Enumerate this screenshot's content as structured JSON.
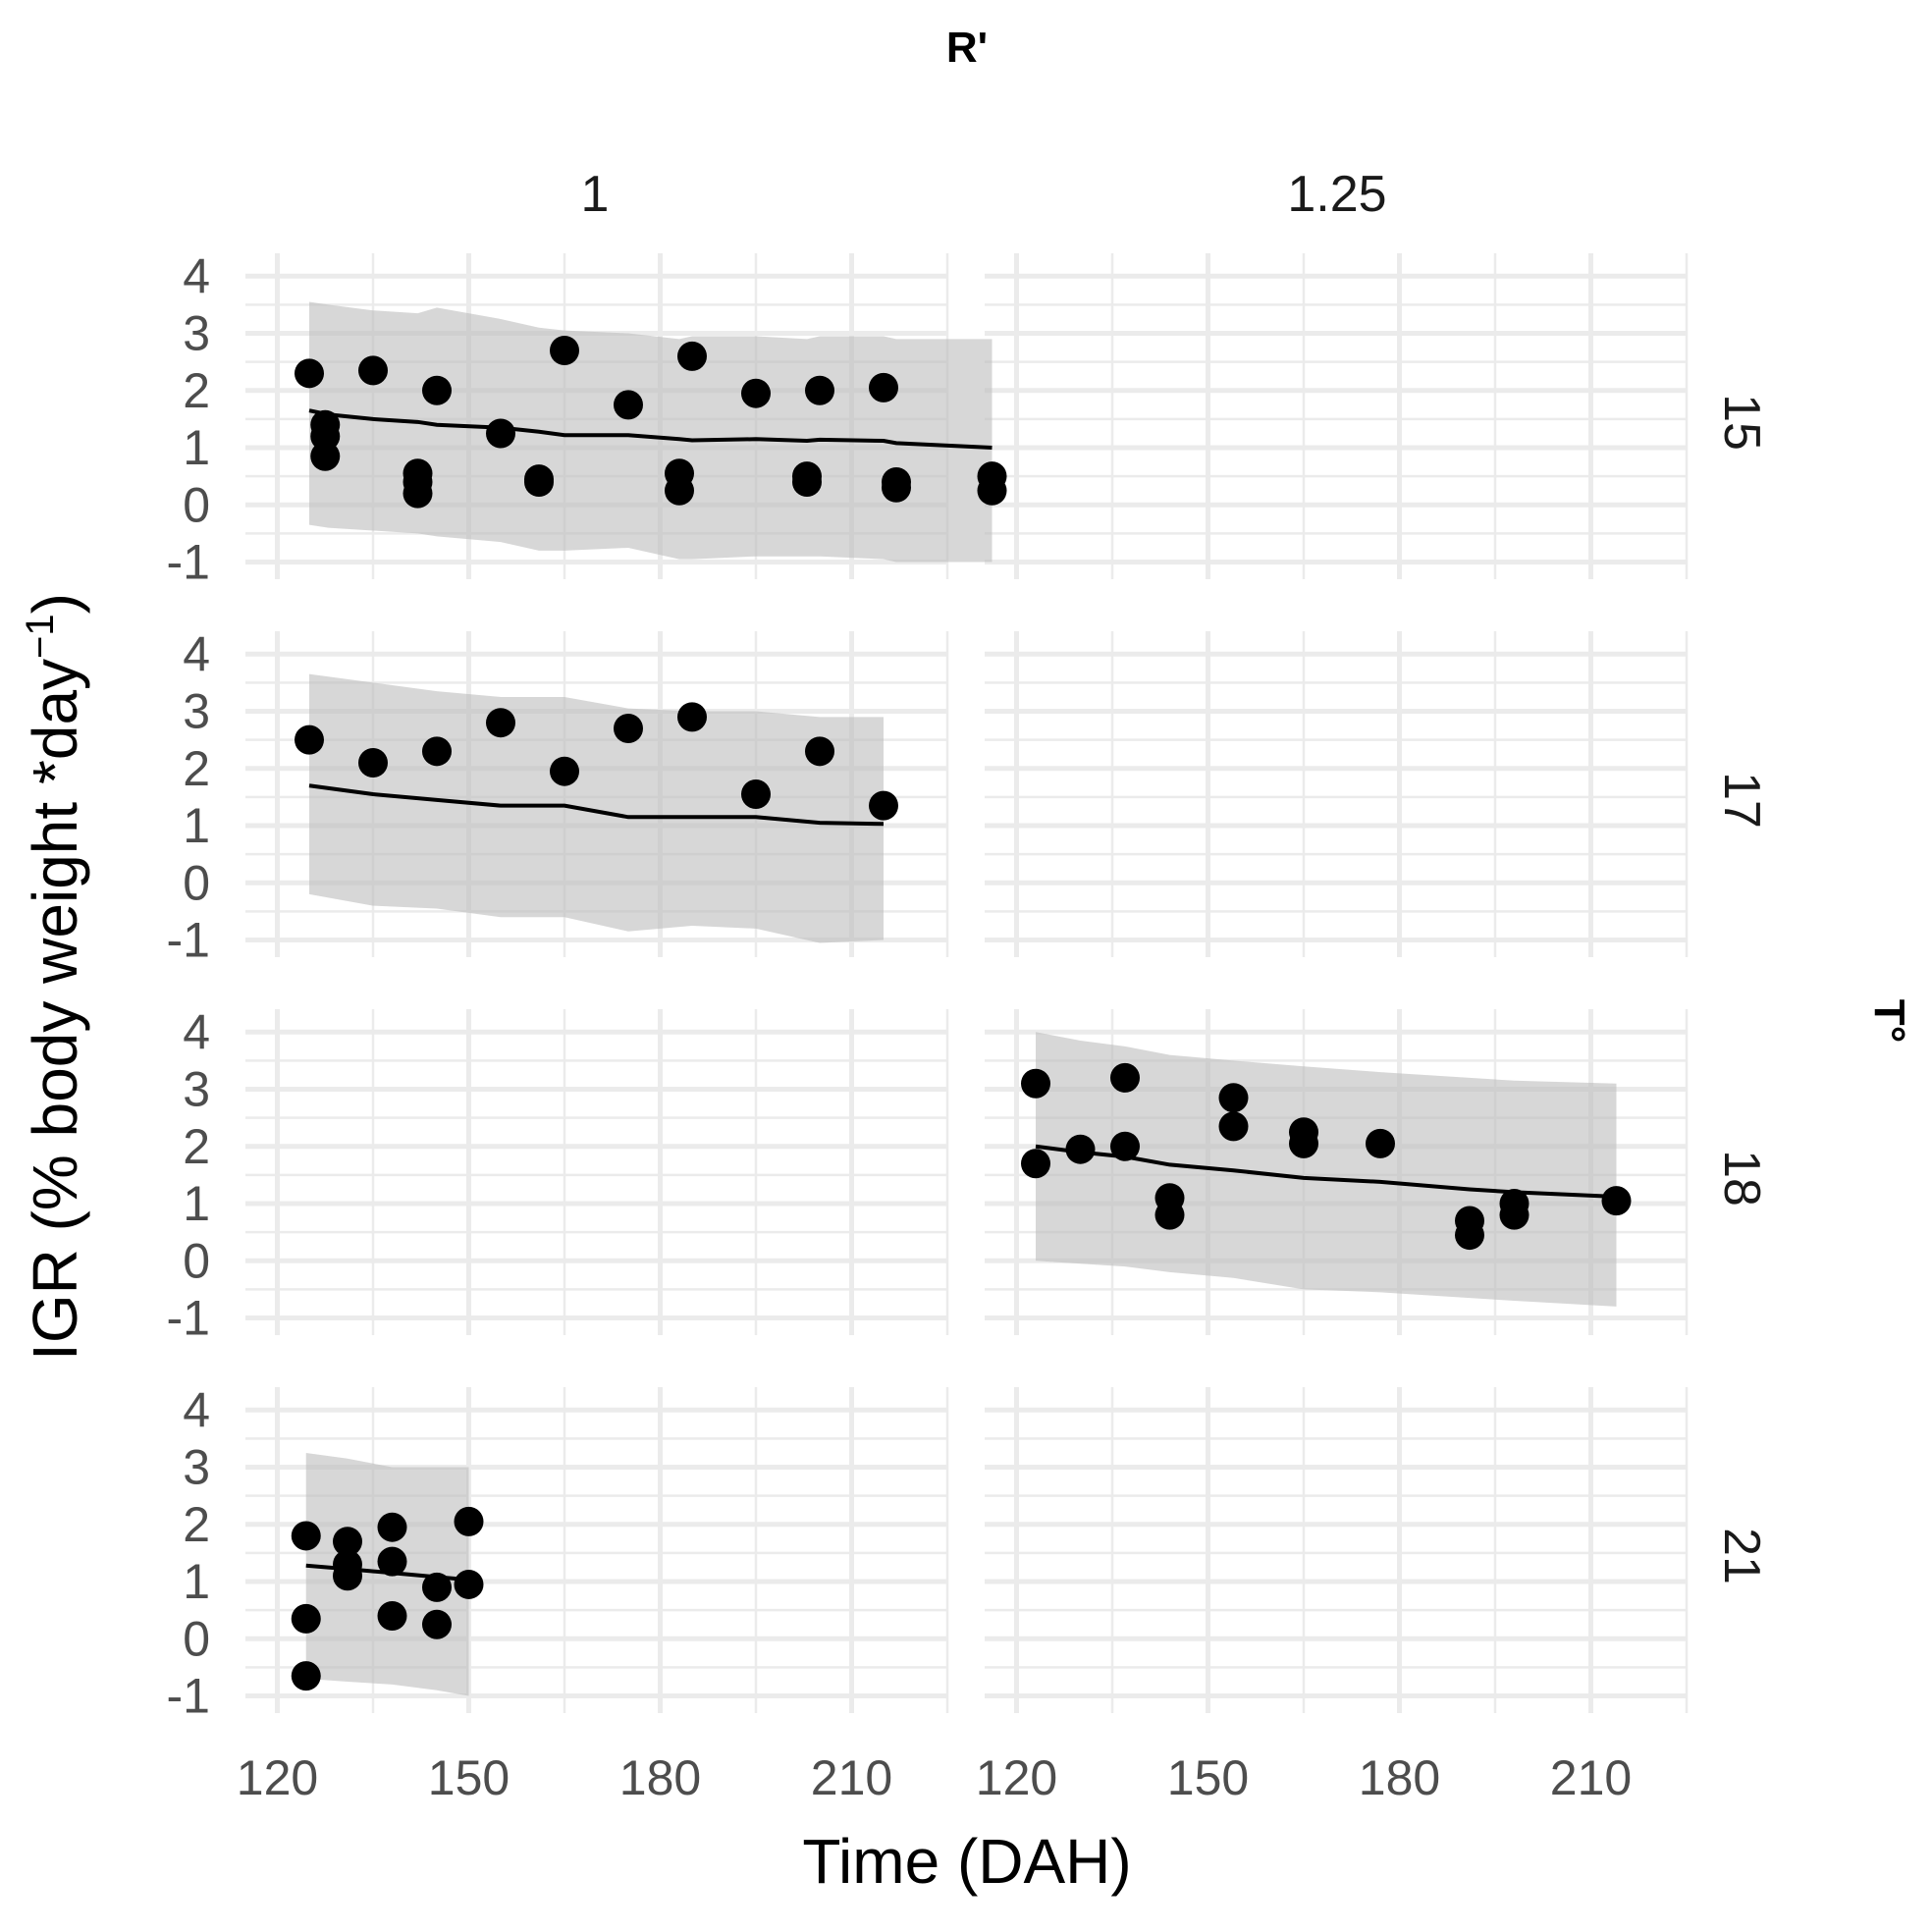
{
  "chart_data": {
    "type": "scatter",
    "facet_col_title": "R'",
    "facet_row_title": "T°",
    "col_labels": [
      "1",
      "1.25"
    ],
    "row_labels": [
      "15",
      "17",
      "18",
      "21"
    ],
    "xlabel": "Time (DAH)",
    "ylabel_main": "IGR (% body weight *day",
    "ylabel_sup": "−1",
    "ylabel_close": ")",
    "xlim": [
      115,
      225
    ],
    "ylim": [
      -1.3,
      4.4
    ],
    "x_ticks": [
      120,
      150,
      180,
      210
    ],
    "y_ticks": [
      -1,
      0,
      1,
      2,
      3,
      4
    ],
    "grid": true,
    "colors": {
      "points": "#000000",
      "line": "#000000",
      "ribbon": "#bdbdbd",
      "grid": "#ebebeb"
    },
    "panels": [
      {
        "row": "15",
        "col": "1",
        "points": [
          [
            125,
            2.3
          ],
          [
            127.5,
            1.4
          ],
          [
            127.5,
            1.2
          ],
          [
            127.5,
            0.85
          ],
          [
            135,
            2.35
          ],
          [
            142,
            0.55
          ],
          [
            142,
            0.4
          ],
          [
            142,
            0.2
          ],
          [
            145,
            2.0
          ],
          [
            155,
            1.25
          ],
          [
            161,
            0.45
          ],
          [
            161,
            0.4
          ],
          [
            165,
            2.7
          ],
          [
            175,
            1.75
          ],
          [
            183,
            0.55
          ],
          [
            183,
            0.25
          ],
          [
            185,
            2.6
          ],
          [
            195,
            1.95
          ],
          [
            203,
            0.5
          ],
          [
            203,
            0.4
          ],
          [
            205,
            2.0
          ],
          [
            215,
            2.05
          ],
          [
            217,
            0.4
          ],
          [
            217,
            0.3
          ],
          [
            232,
            0.5
          ],
          [
            232,
            0.25
          ]
        ],
        "fit": [
          [
            125,
            1.65
          ],
          [
            128,
            1.58
          ],
          [
            135,
            1.5
          ],
          [
            142,
            1.45
          ],
          [
            145,
            1.4
          ],
          [
            155,
            1.35
          ],
          [
            161,
            1.28
          ],
          [
            165,
            1.22
          ],
          [
            175,
            1.22
          ],
          [
            183,
            1.15
          ],
          [
            185,
            1.13
          ],
          [
            195,
            1.15
          ],
          [
            203,
            1.12
          ],
          [
            205,
            1.14
          ],
          [
            215,
            1.12
          ],
          [
            217,
            1.08
          ],
          [
            232,
            1.0
          ]
        ],
        "band_upper": [
          [
            125,
            3.55
          ],
          [
            128,
            3.5
          ],
          [
            135,
            3.4
          ],
          [
            142,
            3.35
          ],
          [
            145,
            3.45
          ],
          [
            155,
            3.25
          ],
          [
            161,
            3.1
          ],
          [
            165,
            3.05
          ],
          [
            175,
            3.0
          ],
          [
            183,
            2.9
          ],
          [
            185,
            2.95
          ],
          [
            195,
            2.95
          ],
          [
            203,
            2.9
          ],
          [
            205,
            2.95
          ],
          [
            215,
            2.95
          ],
          [
            217,
            2.9
          ],
          [
            232,
            2.9
          ]
        ],
        "band_lower": [
          [
            125,
            -0.35
          ],
          [
            128,
            -0.4
          ],
          [
            135,
            -0.45
          ],
          [
            142,
            -0.5
          ],
          [
            145,
            -0.55
          ],
          [
            155,
            -0.65
          ],
          [
            161,
            -0.8
          ],
          [
            165,
            -0.8
          ],
          [
            175,
            -0.75
          ],
          [
            183,
            -0.95
          ],
          [
            185,
            -0.95
          ],
          [
            195,
            -0.9
          ],
          [
            203,
            -0.9
          ],
          [
            205,
            -0.9
          ],
          [
            215,
            -0.95
          ],
          [
            217,
            -1.0
          ],
          [
            232,
            -1.0
          ]
        ]
      },
      {
        "row": "15",
        "col": "1.25",
        "points": [],
        "fit": [],
        "band_upper": [],
        "band_lower": []
      },
      {
        "row": "17",
        "col": "1",
        "points": [
          [
            125,
            2.5
          ],
          [
            135,
            2.1
          ],
          [
            145,
            2.3
          ],
          [
            155,
            2.8
          ],
          [
            165,
            1.95
          ],
          [
            175,
            2.7
          ],
          [
            185,
            2.9
          ],
          [
            195,
            1.55
          ],
          [
            205,
            2.3
          ],
          [
            215,
            1.35
          ]
        ],
        "fit": [
          [
            125,
            1.7
          ],
          [
            135,
            1.55
          ],
          [
            145,
            1.45
          ],
          [
            155,
            1.35
          ],
          [
            165,
            1.35
          ],
          [
            175,
            1.15
          ],
          [
            185,
            1.15
          ],
          [
            195,
            1.15
          ],
          [
            205,
            1.05
          ],
          [
            215,
            1.03
          ]
        ],
        "band_upper": [
          [
            125,
            3.65
          ],
          [
            135,
            3.5
          ],
          [
            145,
            3.35
          ],
          [
            155,
            3.25
          ],
          [
            165,
            3.25
          ],
          [
            175,
            3.05
          ],
          [
            185,
            3.0
          ],
          [
            195,
            3.0
          ],
          [
            205,
            2.9
          ],
          [
            215,
            2.9
          ]
        ],
        "band_lower": [
          [
            125,
            -0.2
          ],
          [
            135,
            -0.4
          ],
          [
            145,
            -0.45
          ],
          [
            155,
            -0.6
          ],
          [
            165,
            -0.6
          ],
          [
            175,
            -0.85
          ],
          [
            185,
            -0.75
          ],
          [
            195,
            -0.8
          ],
          [
            205,
            -1.05
          ],
          [
            215,
            -1.0
          ]
        ]
      },
      {
        "row": "17",
        "col": "1.25",
        "points": [],
        "fit": [],
        "band_upper": [],
        "band_lower": []
      },
      {
        "row": "18",
        "col": "1",
        "points": [],
        "fit": [],
        "band_upper": [],
        "band_lower": []
      },
      {
        "row": "18",
        "col": "1.25",
        "points": [
          [
            123,
            3.1
          ],
          [
            123,
            1.7
          ],
          [
            130,
            1.95
          ],
          [
            137,
            3.2
          ],
          [
            137,
            2.0
          ],
          [
            144,
            1.1
          ],
          [
            144,
            0.8
          ],
          [
            154,
            2.85
          ],
          [
            154,
            2.35
          ],
          [
            165,
            2.25
          ],
          [
            165,
            2.05
          ],
          [
            177,
            2.05
          ],
          [
            191,
            0.7
          ],
          [
            191,
            0.45
          ],
          [
            198,
            1.0
          ],
          [
            198,
            0.8
          ],
          [
            214,
            1.05
          ]
        ],
        "fit": [
          [
            123,
            2.0
          ],
          [
            130,
            1.9
          ],
          [
            137,
            1.82
          ],
          [
            144,
            1.68
          ],
          [
            154,
            1.58
          ],
          [
            165,
            1.45
          ],
          [
            177,
            1.38
          ],
          [
            191,
            1.25
          ],
          [
            198,
            1.2
          ],
          [
            214,
            1.12
          ]
        ],
        "band_upper": [
          [
            123,
            4.0
          ],
          [
            130,
            3.85
          ],
          [
            137,
            3.75
          ],
          [
            144,
            3.6
          ],
          [
            154,
            3.5
          ],
          [
            165,
            3.4
          ],
          [
            177,
            3.3
          ],
          [
            191,
            3.2
          ],
          [
            198,
            3.15
          ],
          [
            214,
            3.1
          ]
        ],
        "band_lower": [
          [
            123,
            0.0
          ],
          [
            130,
            -0.05
          ],
          [
            137,
            -0.1
          ],
          [
            144,
            -0.2
          ],
          [
            154,
            -0.3
          ],
          [
            165,
            -0.5
          ],
          [
            177,
            -0.55
          ],
          [
            191,
            -0.65
          ],
          [
            198,
            -0.7
          ],
          [
            214,
            -0.8
          ]
        ]
      },
      {
        "row": "21",
        "col": "1",
        "points": [
          [
            124.5,
            1.8
          ],
          [
            124.5,
            0.35
          ],
          [
            124.5,
            -0.65
          ],
          [
            131,
            1.7
          ],
          [
            131,
            1.3
          ],
          [
            131,
            1.1
          ],
          [
            138,
            1.95
          ],
          [
            138,
            1.35
          ],
          [
            138,
            0.4
          ],
          [
            145,
            0.9
          ],
          [
            145,
            0.25
          ],
          [
            150,
            2.05
          ],
          [
            150,
            0.95
          ]
        ],
        "fit": [
          [
            124.5,
            1.28
          ],
          [
            131,
            1.22
          ],
          [
            138,
            1.15
          ],
          [
            145,
            1.08
          ],
          [
            150,
            1.03
          ]
        ],
        "band_upper": [
          [
            124.5,
            3.25
          ],
          [
            131,
            3.15
          ],
          [
            138,
            3.0
          ],
          [
            145,
            3.0
          ],
          [
            150,
            3.0
          ]
        ],
        "band_lower": [
          [
            124.5,
            -0.7
          ],
          [
            131,
            -0.75
          ],
          [
            138,
            -0.8
          ],
          [
            145,
            -0.9
          ],
          [
            150,
            -1.0
          ]
        ]
      },
      {
        "row": "21",
        "col": "1.25",
        "points": [],
        "fit": [],
        "band_upper": [],
        "band_lower": []
      }
    ]
  }
}
